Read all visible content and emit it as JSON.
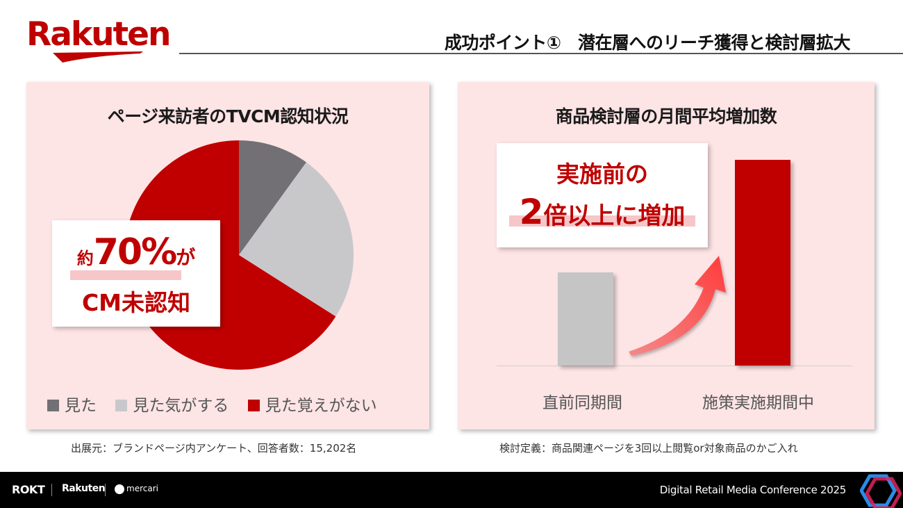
{
  "header": {
    "logo_text": "Rakuten",
    "title": "成功ポイント①　潜在層へのリーチ獲得と検討層拡大"
  },
  "left_panel": {
    "title": "ページ来訪者のTVCM認知状況",
    "callout": {
      "prefix": "約",
      "percent": "70%",
      "suffix": "が",
      "line2": "CM未認知"
    },
    "legend": [
      {
        "label": "見た",
        "color": "#727075"
      },
      {
        "label": "見た気がする",
        "color": "#c8c8cb"
      },
      {
        "label": "見た覚えがない",
        "color": "#c00000"
      }
    ],
    "note": "出展元：ブランドページ内アンケート、回答者数：15,202名"
  },
  "chart_data": [
    {
      "type": "pie",
      "title": "ページ来訪者のTVCM認知状況",
      "labels": [
        "見た",
        "見た気がする",
        "見た覚えがない"
      ],
      "values": [
        10,
        24,
        66
      ],
      "colors": [
        "#727075",
        "#c8c8cb",
        "#c00000"
      ]
    },
    {
      "type": "bar",
      "title": "商品検討層の月間平均増加数",
      "categories": [
        "直前同期間",
        "施策実施期間中"
      ],
      "values": [
        1,
        2.2
      ],
      "colors": [
        "#c5c5c5",
        "#c00000"
      ]
    }
  ],
  "right_panel": {
    "title": "商品検討層の月間平均増加数",
    "callout": {
      "line1": "実施前の",
      "number": "2",
      "rest": "倍以上に増加"
    },
    "categories": [
      "直前同期間",
      "施策実施期間中"
    ],
    "note": "検討定義：商品関連ページを3回以上閲覧or対象商品のかご入れ"
  },
  "footer": {
    "rokt": "ROKT",
    "rakuten": "Rakuten",
    "mercari": "mercari",
    "conference": "Digital Retail Media Conference 2025"
  }
}
